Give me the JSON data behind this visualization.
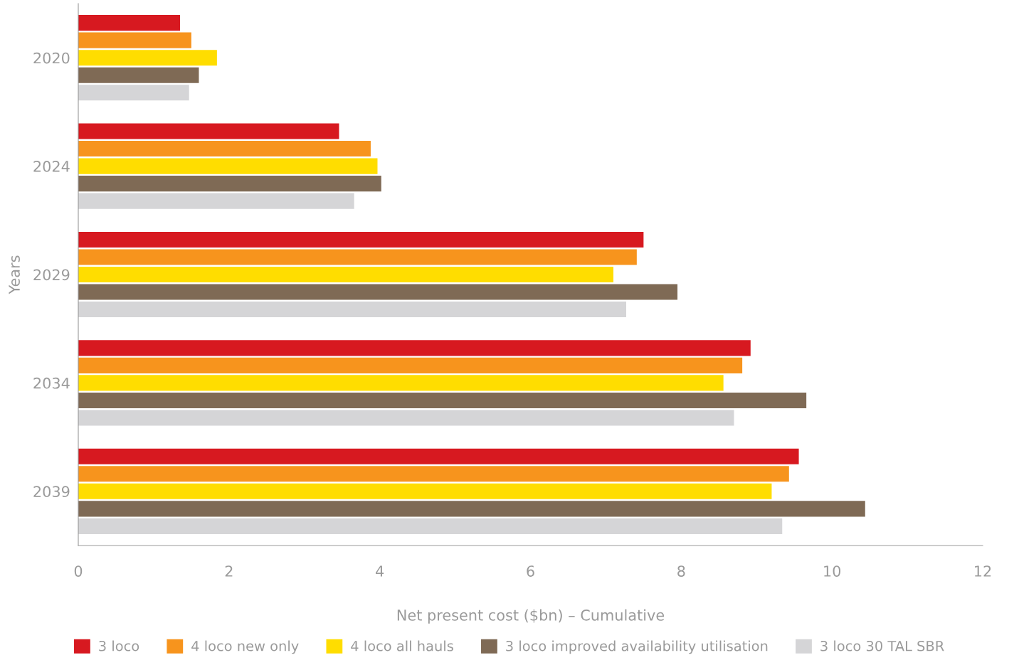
{
  "chart_data": {
    "type": "bar",
    "orientation": "horizontal",
    "xlabel": "Net present cost ($bn) – Cumulative",
    "ylabel": "Years",
    "categories": [
      "2020",
      "2024",
      "2029",
      "2034",
      "2039"
    ],
    "series": [
      {
        "name": "3 loco",
        "color": "#d71920",
        "values": [
          1.35,
          3.46,
          7.5,
          8.92,
          9.56
        ]
      },
      {
        "name": "4 loco new only",
        "color": "#f7941d",
        "values": [
          1.5,
          3.88,
          7.41,
          8.81,
          9.43
        ]
      },
      {
        "name": "4 loco all hauls",
        "color": "#ffdd00",
        "values": [
          1.84,
          3.97,
          7.1,
          8.56,
          9.2
        ]
      },
      {
        "name": "3 loco improved availability utilisation",
        "color": "#7f6a55",
        "values": [
          1.6,
          4.02,
          7.95,
          9.66,
          10.44
        ]
      },
      {
        "name": "3 loco 30 TAL SBR",
        "color": "#d5d5d7",
        "values": [
          1.47,
          3.66,
          7.27,
          8.7,
          9.34
        ]
      }
    ],
    "xlim": [
      0,
      12
    ],
    "xticks": [
      0,
      2,
      4,
      6,
      8,
      10,
      12
    ],
    "grid": false,
    "legend": "bottom"
  }
}
